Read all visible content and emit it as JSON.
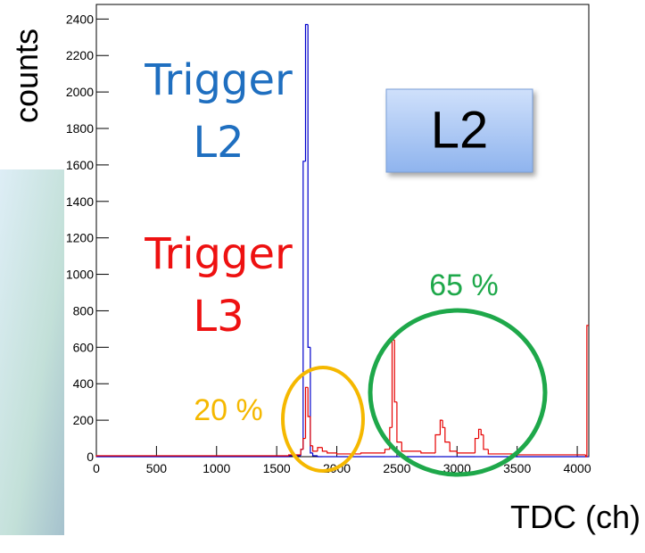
{
  "chart_data": {
    "type": "histogram",
    "xlabel": "TDC (ch)",
    "ylabel": "counts",
    "bins": [
      0,
      1600,
      1700,
      1720,
      1740,
      1760,
      1780,
      1800,
      1840,
      1880,
      1920,
      2000,
      2200,
      2400,
      2440,
      2460,
      2480,
      2500,
      2540,
      2700,
      2820,
      2860,
      2880,
      2900,
      2940,
      3000,
      3150,
      3180,
      3200,
      3220,
      3260,
      3500,
      4070,
      4080,
      4096
    ],
    "series": [
      {
        "name": "Trigger L2",
        "color": "#0000cc",
        "label_color": "#1f6fc0",
        "values": [
          0,
          5,
          40,
          1620,
          2370,
          600,
          20,
          5,
          0,
          0,
          0,
          0,
          0,
          0,
          0,
          0,
          0,
          0,
          0,
          0,
          0,
          0,
          0,
          0,
          0,
          0,
          0,
          0,
          0,
          0,
          0,
          0,
          0,
          0
        ]
      },
      {
        "name": "Trigger L3",
        "color": "#e60000",
        "label_color": "#ee1111",
        "values": [
          5,
          10,
          40,
          100,
          380,
          220,
          60,
          30,
          50,
          30,
          20,
          15,
          20,
          40,
          160,
          640,
          300,
          80,
          30,
          20,
          120,
          200,
          160,
          80,
          30,
          20,
          100,
          150,
          120,
          40,
          15,
          10,
          0,
          720
        ]
      }
    ],
    "xlim": [
      0,
      4096
    ],
    "ylim": [
      0,
      2480
    ],
    "xticks": [
      0,
      500,
      1000,
      1500,
      2000,
      2500,
      3000,
      3500,
      4000
    ],
    "yticks": [
      0,
      200,
      400,
      600,
      800,
      1000,
      1200,
      1400,
      1600,
      1800,
      2000,
      2200,
      2400
    ],
    "annotations": [
      {
        "text": "L2"
      },
      {
        "text": "65 %",
        "color": "#1ea84a"
      },
      {
        "text": "20 %",
        "color": "#f5b800"
      }
    ]
  }
}
